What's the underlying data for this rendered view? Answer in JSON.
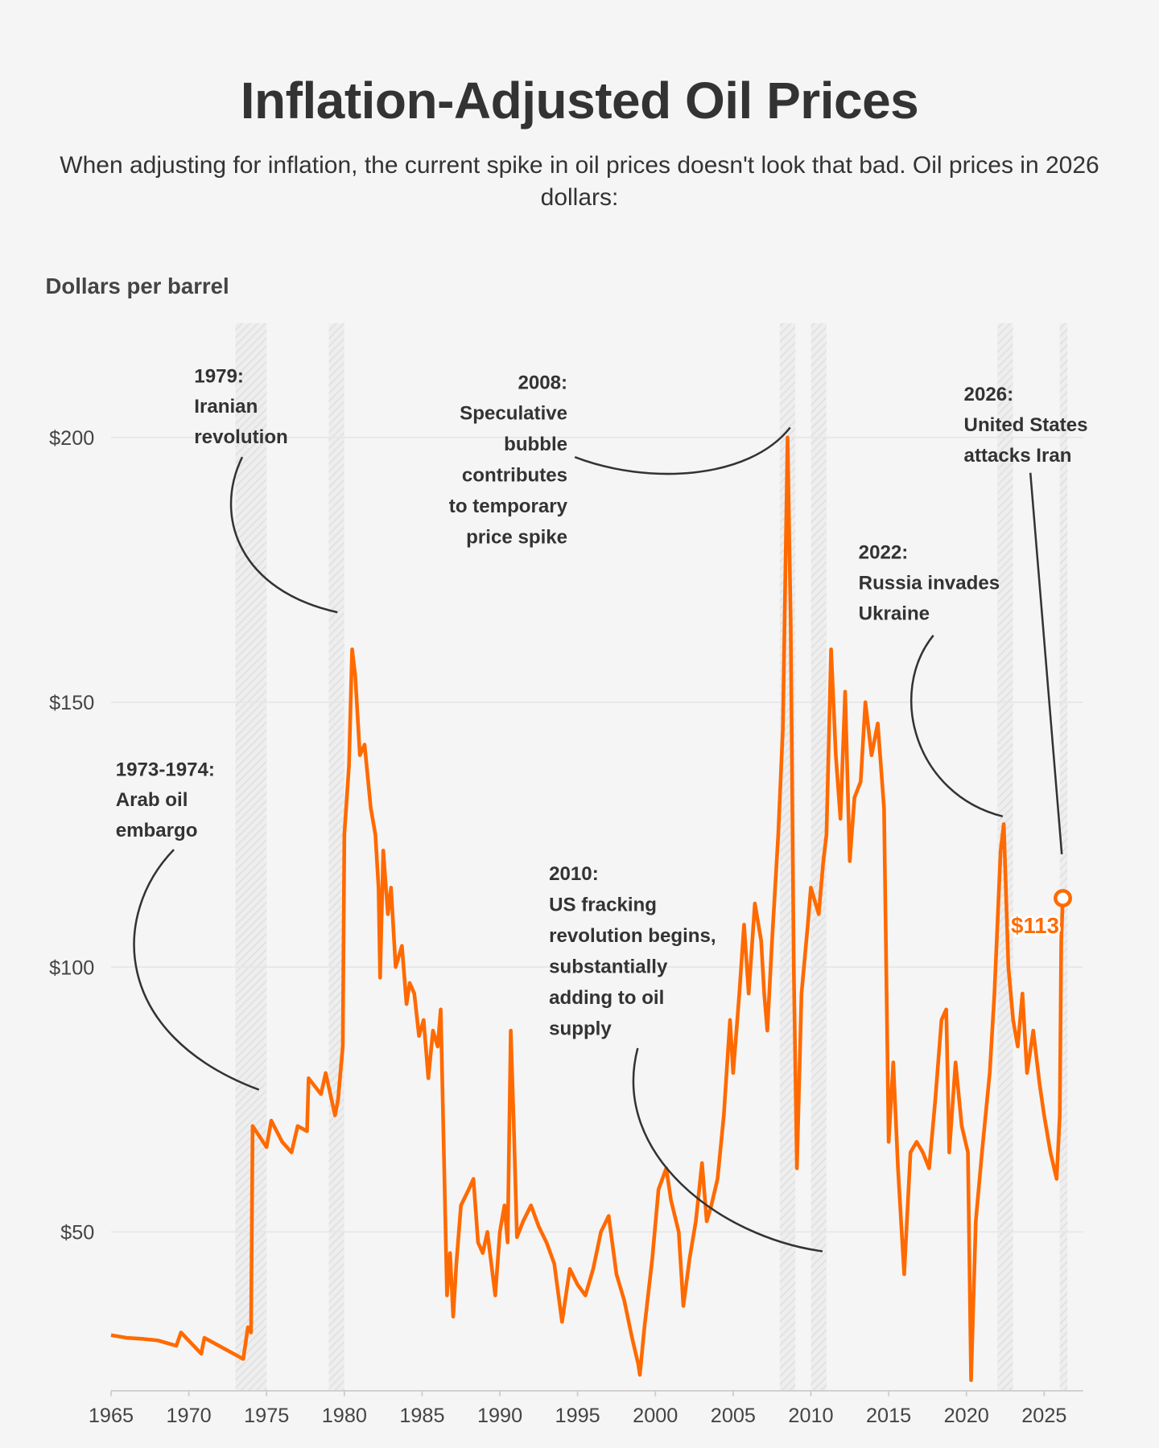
{
  "chart_data": {
    "type": "line",
    "title": "Inflation-Adjusted Oil Prices",
    "subtitle": "When adjusting for inflation, the current spike in oil prices doesn't look that bad. Oil prices in 2026 dollars:",
    "y_label": "Dollars per barrel",
    "xlim": [
      1965,
      2027.5
    ],
    "xticks": [
      1965,
      1970,
      1975,
      1980,
      1985,
      1990,
      1995,
      2000,
      2005,
      2010,
      2015,
      2020,
      2025
    ],
    "ylim": [
      20,
      220
    ],
    "yticks": [
      {
        "value": 50,
        "label": "$50"
      },
      {
        "value": 100,
        "label": "$100"
      },
      {
        "value": 150,
        "label": "$150"
      },
      {
        "value": 200,
        "label": "$200"
      }
    ],
    "grid": true,
    "color": "#ff6a00",
    "bands": [
      [
        1973,
        1975
      ],
      [
        1979,
        1980
      ],
      [
        2008,
        2009
      ],
      [
        2010,
        2011
      ],
      [
        2022,
        2023
      ],
      [
        2026,
        2026.5
      ]
    ],
    "x": [
      1965,
      1966,
      1967,
      1968,
      1969.2,
      1969.5,
      1970.8,
      1971,
      1973.5,
      1973.8,
      1974,
      1974.1,
      1975,
      1975.3,
      1976,
      1976.6,
      1977,
      1977.6,
      1977.7,
      1978.5,
      1978.8,
      1979.4,
      1979.6,
      1979.9,
      1980,
      1980.3,
      1980.5,
      1980.7,
      1981,
      1981.3,
      1981.7,
      1982,
      1982.2,
      1982.3,
      1982.5,
      1982.8,
      1983,
      1983.3,
      1983.7,
      1984,
      1984.2,
      1984.5,
      1984.8,
      1985.1,
      1985.4,
      1985.7,
      1986,
      1986.2,
      1986.4,
      1986.6,
      1986.8,
      1987,
      1987.2,
      1987.5,
      1988,
      1988.3,
      1988.6,
      1988.9,
      1989.2,
      1989.7,
      1990,
      1990.3,
      1990.5,
      1990.7,
      1990.9,
      1991.1,
      1991.5,
      1992,
      1992.5,
      1993,
      1993.5,
      1994,
      1994.5,
      1995,
      1995.5,
      1996,
      1996.5,
      1997,
      1997.5,
      1998,
      1998.5,
      1998.9,
      1999,
      1999.3,
      1999.8,
      2000.2,
      2000.7,
      2001,
      2001.5,
      2001.8,
      2002.2,
      2002.6,
      2003,
      2003.3,
      2003.6,
      2004,
      2004.4,
      2004.8,
      2005,
      2005.4,
      2005.7,
      2006,
      2006.4,
      2006.8,
      2007,
      2007.2,
      2007.5,
      2007.9,
      2008.2,
      2008.5,
      2008.7,
      2008.9,
      2009.1,
      2009.4,
      2009.8,
      2010,
      2010.5,
      2010.8,
      2011,
      2011.3,
      2011.6,
      2011.9,
      2012.2,
      2012.5,
      2012.8,
      2013.2,
      2013.5,
      2013.9,
      2014.3,
      2014.7,
      2015,
      2015.3,
      2015.6,
      2016,
      2016.4,
      2016.8,
      2017.2,
      2017.6,
      2018,
      2018.4,
      2018.7,
      2018.9,
      2019.3,
      2019.7,
      2020.1,
      2020.3,
      2020.6,
      2021,
      2021.5,
      2021.8,
      2022.2,
      2022.4,
      2022.7,
      2023,
      2023.3,
      2023.6,
      2023.9,
      2024.3,
      2024.7,
      2025,
      2025.4,
      2025.8,
      2026,
      2026.1,
      2026.2
    ],
    "values": [
      30.5,
      30,
      29.8,
      29.5,
      28.5,
      31,
      27,
      30,
      26,
      32,
      31,
      70,
      66,
      71,
      67,
      65,
      70,
      69,
      79,
      76,
      80,
      72,
      75,
      85,
      125,
      138,
      160,
      155,
      140,
      142,
      130,
      125,
      115,
      98,
      122,
      110,
      115,
      100,
      104,
      93,
      97,
      95,
      87,
      90,
      79,
      88,
      85,
      92,
      65,
      38,
      46,
      34,
      44,
      55,
      58,
      60,
      48,
      46,
      50,
      38,
      50,
      55,
      48,
      88,
      70,
      49,
      52,
      55,
      51,
      48,
      44,
      33,
      43,
      40,
      38,
      43,
      50,
      53,
      42,
      37,
      30,
      25,
      23,
      32,
      45,
      58,
      62,
      56,
      50,
      36,
      45,
      52,
      63,
      52,
      55,
      60,
      72,
      90,
      80,
      95,
      108,
      95,
      112,
      105,
      95,
      88,
      105,
      125,
      145,
      200,
      165,
      100,
      62,
      95,
      108,
      115,
      110,
      120,
      125,
      160,
      140,
      128,
      152,
      120,
      132,
      135,
      150,
      140,
      146,
      130,
      67,
      82,
      62,
      42,
      65,
      67,
      65,
      62,
      75,
      90,
      92,
      65,
      82,
      70,
      65,
      22,
      52,
      65,
      80,
      95,
      122,
      127,
      100,
      90,
      85,
      95,
      80,
      88,
      78,
      72,
      65,
      60,
      72,
      105,
      113
    ],
    "value_labels": [
      null,
      null,
      null,
      null,
      null,
      null,
      null,
      null,
      null,
      null,
      null,
      null,
      null,
      null,
      null,
      null,
      null,
      null,
      null,
      null,
      null,
      null,
      null,
      null,
      null,
      null,
      null,
      null,
      null,
      null,
      null,
      null,
      null,
      null,
      null,
      null,
      null,
      null,
      null,
      null,
      null,
      null,
      null,
      null,
      null,
      null,
      null,
      null,
      null,
      null,
      null,
      null,
      null,
      null,
      null,
      null,
      null,
      null,
      null,
      null,
      null,
      null,
      null,
      null,
      null,
      null,
      null,
      null,
      null,
      null,
      null,
      null,
      null,
      null,
      null,
      null,
      null,
      null,
      null,
      null,
      null,
      null,
      null,
      null,
      null,
      null,
      null,
      null,
      null,
      null,
      null,
      null,
      null,
      null,
      null,
      null,
      null,
      null,
      null,
      null,
      null,
      null,
      null,
      null,
      null,
      null,
      null,
      null,
      null,
      null,
      null,
      null,
      null,
      null,
      null,
      null,
      null,
      null,
      null,
      null,
      null,
      null,
      null,
      null,
      null,
      null,
      null,
      null,
      null,
      null,
      null,
      null,
      null,
      null,
      null,
      null,
      null,
      null,
      null,
      null,
      null,
      null,
      null,
      null,
      null,
      null,
      null,
      null,
      null,
      null,
      null,
      null,
      null,
      null,
      null,
      null,
      null,
      null,
      null,
      null,
      null,
      null,
      null,
      null,
      "$113"
    ],
    "annotations": [
      {
        "lines": [
          "1973-1974:",
          "Arab oil",
          "embargo"
        ]
      },
      {
        "lines": [
          "1979:",
          "Iranian",
          "revolution"
        ]
      },
      {
        "lines": [
          "2008:",
          "Speculative",
          "bubble",
          "contributes",
          "to temporary",
          "price spike"
        ]
      },
      {
        "lines": [
          "2010:",
          "US fracking",
          "revolution begins,",
          "substantially",
          "adding to oil",
          "supply"
        ]
      },
      {
        "lines": [
          "2022:",
          "Russia invades",
          "Ukraine"
        ]
      },
      {
        "lines": [
          "2026:",
          "United States",
          "attacks Iran"
        ]
      }
    ]
  }
}
